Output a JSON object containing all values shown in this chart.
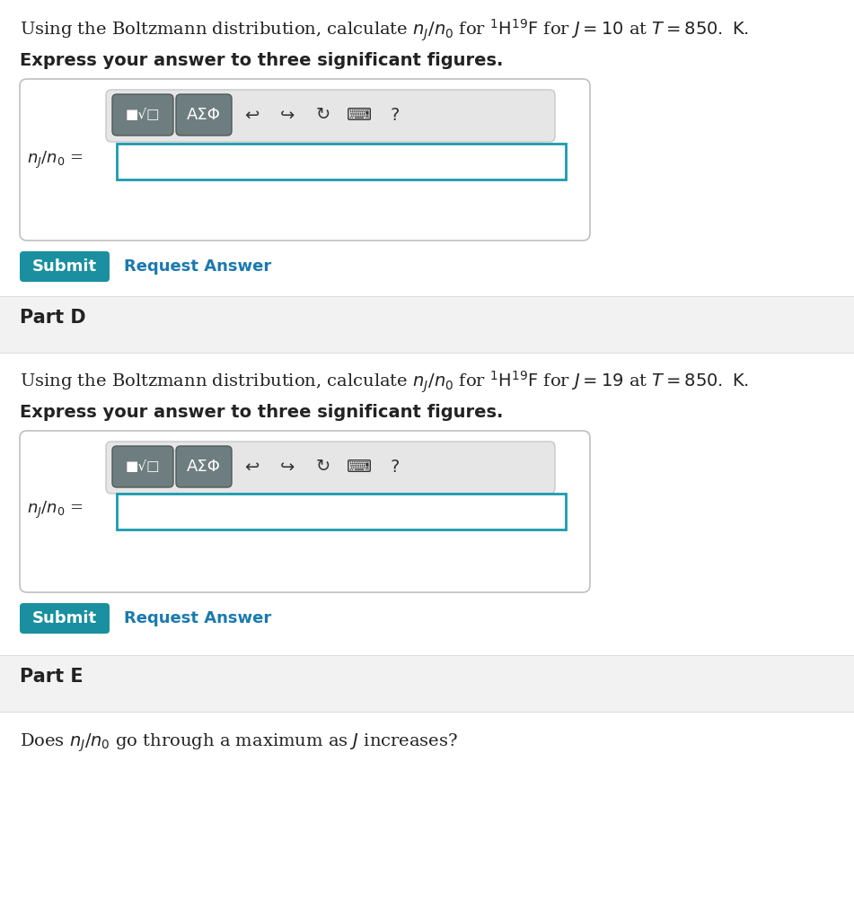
{
  "bg_color": "#ffffff",
  "section_bg": "#f2f2f2",
  "teal_btn": "#1a8fa0",
  "input_border": "#1a9aaf",
  "text_color": "#222222",
  "link_color": "#1a7aaf",
  "box_border": "#c8c8c8",
  "toolbar_bg": "#e2e2e2",
  "btn_color": "#6e7e80",
  "part_c_text1": "Using the Boltzmann distribution, calculate ",
  "part_c_nj": "$n_J/n_0$",
  "part_c_text2": " for ",
  "part_c_mol": "$^1\\mathrm{H}^{19}\\mathrm{F}$",
  "part_c_text3": " for ",
  "part_c_J": "$J = 10$",
  "part_c_text4": " at ",
  "part_c_T": "$T = 850.$",
  "part_c_text5": " K.",
  "part_d_J": "$J = 19$",
  "part_d_T": "$T = 850.$",
  "bold_text": "Express your answer to three significant figures.",
  "nj_label": "$n_J/n_0$",
  "submit_text": "Submit",
  "request_text": "Request Answer",
  "part_d_label": "Part D",
  "part_e_label": "Part E",
  "part_e_text1": "Does ",
  "part_e_nj": "$n_J/n_0$",
  "part_e_text2": " go through a maximum as ",
  "part_e_J": "$J$",
  "part_e_text3": " increases?"
}
